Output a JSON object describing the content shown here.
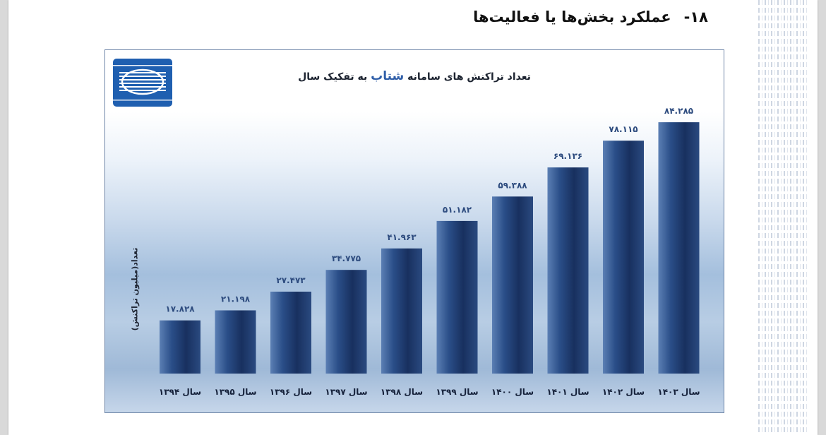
{
  "document": {
    "section_number": "۱۸-",
    "section_title": "عملکرد بخش‌ها یا فعالیت‌ها"
  },
  "colors": {
    "bar_dark": "#182f5e",
    "bar_light": "#5b7fb4",
    "value_text": "#2d4b7e",
    "title_highlight": "#2f5ea8"
  },
  "chart_data": {
    "type": "bar",
    "title_prefix": "تعداد تراکنش های سامانه ",
    "title_highlight": "شتاب",
    "title_suffix": " به تفکیک سال",
    "ylabel": "تعداد(میلیون تراکنش)",
    "xlabel": "",
    "grid": false,
    "ylim": [
      0,
      90
    ],
    "categories": [
      "سال ۱۳۹۴",
      "سال ۱۳۹۵",
      "سال ۱۳۹۶",
      "سال ۱۳۹۷",
      "سال ۱۳۹۸",
      "سال ۱۳۹۹",
      "سال ۱۴۰۰",
      "سال ۱۴۰۱",
      "سال ۱۴۰۲",
      "سال ۱۴۰۳"
    ],
    "values": [
      17.828,
      21.198,
      27.473,
      34.775,
      41.963,
      51.182,
      59.388,
      69.136,
      78.115,
      84.285
    ],
    "value_labels": [
      "۱۷.۸۲۸",
      "۲۱.۱۹۸",
      "۲۷.۴۷۳",
      "۳۴.۷۷۵",
      "۴۱.۹۶۳",
      "۵۱.۱۸۲",
      "۵۹.۳۸۸",
      "۶۹.۱۳۶",
      "۷۸.۱۱۵",
      "۸۴.۲۸۵"
    ]
  }
}
